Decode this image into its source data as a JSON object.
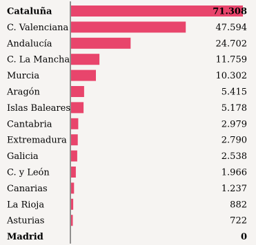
{
  "chart_data": {
    "type": "bar",
    "orientation": "horizontal",
    "categories": [
      "Cataluña",
      "C. Valenciana",
      "Andalucía",
      "C. La Mancha",
      "Murcia",
      "Aragón",
      "Islas Baleares",
      "Cantabria",
      "Extremadura",
      "Galicia",
      "C. y León",
      "Canarias",
      "La Rioja",
      "Asturias",
      "Madrid"
    ],
    "values": [
      71308,
      47594,
      24702,
      11759,
      10302,
      5415,
      5178,
      2979,
      2790,
      2538,
      1966,
      1237,
      882,
      722,
      0
    ],
    "value_labels": [
      "71.308",
      "47.594",
      "24.702",
      "11.759",
      "10.302",
      "5.415",
      "5.178",
      "2.979",
      "2.790",
      "2.538",
      "1.966",
      "1.237",
      "882",
      "722",
      "0"
    ],
    "bold_categories": [
      "Cataluña",
      "Madrid"
    ],
    "bar_color": "#e8456c",
    "xlim": [
      0,
      71308
    ],
    "grid": false,
    "title": "",
    "xlabel": "",
    "ylabel": ""
  }
}
